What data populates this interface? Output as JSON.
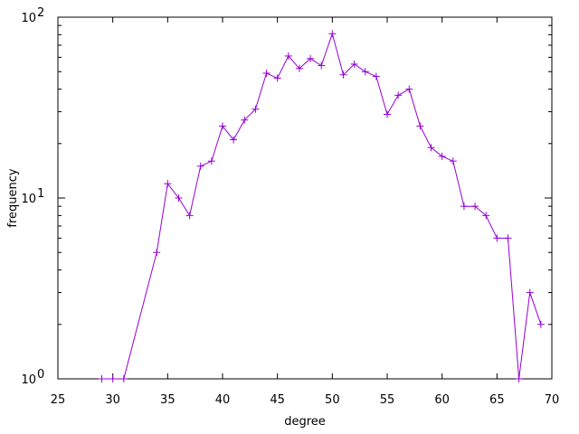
{
  "chart_data": {
    "type": "line",
    "title": "",
    "xlabel": "degree",
    "ylabel": "frequency",
    "xlim": [
      25,
      70
    ],
    "ylim": [
      1,
      100
    ],
    "yscale": "log",
    "grid": false,
    "legend": "none",
    "x_ticks": [
      "25",
      "30",
      "35",
      "40",
      "45",
      "50",
      "55",
      "60",
      "65",
      "70"
    ],
    "y_ticks": [
      {
        "base": "10",
        "exp": "0"
      },
      {
        "base": "10",
        "exp": "1"
      },
      {
        "base": "10",
        "exp": "2"
      }
    ],
    "series": [
      {
        "color": "#9400d3",
        "marker": "plus",
        "points": [
          [
            29,
            1
          ],
          [
            30,
            1
          ],
          [
            31,
            1
          ],
          [
            34,
            5
          ],
          [
            35,
            12
          ],
          [
            36,
            10
          ],
          [
            37,
            8
          ],
          [
            38,
            15
          ],
          [
            39,
            16
          ],
          [
            40,
            25
          ],
          [
            41,
            21
          ],
          [
            42,
            27
          ],
          [
            43,
            31
          ],
          [
            44,
            49
          ],
          [
            45,
            46
          ],
          [
            46,
            61
          ],
          [
            47,
            52
          ],
          [
            48,
            59
          ],
          [
            49,
            54
          ],
          [
            50,
            81
          ],
          [
            51,
            48
          ],
          [
            52,
            55
          ],
          [
            53,
            50
          ],
          [
            54,
            47
          ],
          [
            55,
            29
          ],
          [
            56,
            37
          ],
          [
            57,
            40
          ],
          [
            58,
            25
          ],
          [
            59,
            19
          ],
          [
            60,
            17
          ],
          [
            61,
            16
          ],
          [
            62,
            9
          ],
          [
            63,
            9
          ],
          [
            64,
            8
          ],
          [
            65,
            6
          ],
          [
            66,
            6
          ],
          [
            67,
            1
          ],
          [
            68,
            3
          ],
          [
            69,
            2
          ]
        ]
      }
    ]
  }
}
